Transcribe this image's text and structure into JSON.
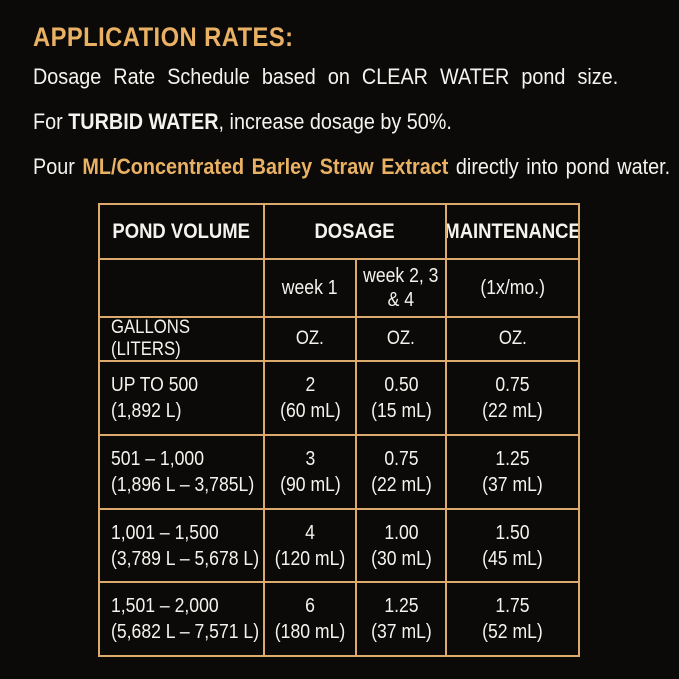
{
  "colors": {
    "background": "#0c0a08",
    "accent_gold": "#e9b163",
    "table_border": "#ddaa6e",
    "text_white": "#f5f3ef"
  },
  "intro": {
    "title": "APPLICATION RATES:",
    "dosage_line": "Dosage Rate Schedule based on CLEAR WATER pond size.",
    "turbid_line": {
      "prefix": "For",
      "bold": "TURBID WATER",
      "suffix": ", increase dosage by 50%."
    },
    "pour_line": {
      "prefix": "Pour",
      "accent": "ML/Concentrated Barley Straw Extract",
      "suffix": "directly into pond water."
    }
  },
  "table": {
    "headers": {
      "pond_volume": "POND VOLUME",
      "dosage": "DOSAGE",
      "maintenance": "MAINTENANCE"
    },
    "subheaders": {
      "week1": "week 1",
      "week234_line1": "week 2, 3",
      "week234_line2": "& 4",
      "maintenance_freq": "(1x/mo.)"
    },
    "units": {
      "volume_label": "GALLONS (LITERS)",
      "week1": "OZ.",
      "week234": "OZ.",
      "maintenance": "OZ."
    },
    "rows": [
      {
        "volume": "UP TO 500",
        "volume_liters": "(1,892 L)",
        "week1_oz": "2",
        "week1_ml": "(60 mL)",
        "week234_oz": "0.50",
        "week234_ml": "(15 mL)",
        "maint_oz": "0.75",
        "maint_ml": "(22 mL)"
      },
      {
        "volume": "501 – 1,000",
        "volume_liters": "(1,896 L – 3,785L)",
        "week1_oz": "3",
        "week1_ml": "(90 mL)",
        "week234_oz": "0.75",
        "week234_ml": "(22 mL)",
        "maint_oz": "1.25",
        "maint_ml": "(37 mL)"
      },
      {
        "volume": "1,001 – 1,500",
        "volume_liters": "(3,789 L – 5,678 L)",
        "week1_oz": "4",
        "week1_ml": "(120 mL)",
        "week234_oz": "1.00",
        "week234_ml": "(30 mL)",
        "maint_oz": "1.50",
        "maint_ml": "(45 mL)"
      },
      {
        "volume": "1,501 – 2,000",
        "volume_liters": "(5,682 L – 7,571 L)",
        "week1_oz": "6",
        "week1_ml": "(180 mL)",
        "week234_oz": "1.25",
        "week234_ml": "(37 mL)",
        "maint_oz": "1.75",
        "maint_ml": "(52 mL)"
      }
    ]
  }
}
